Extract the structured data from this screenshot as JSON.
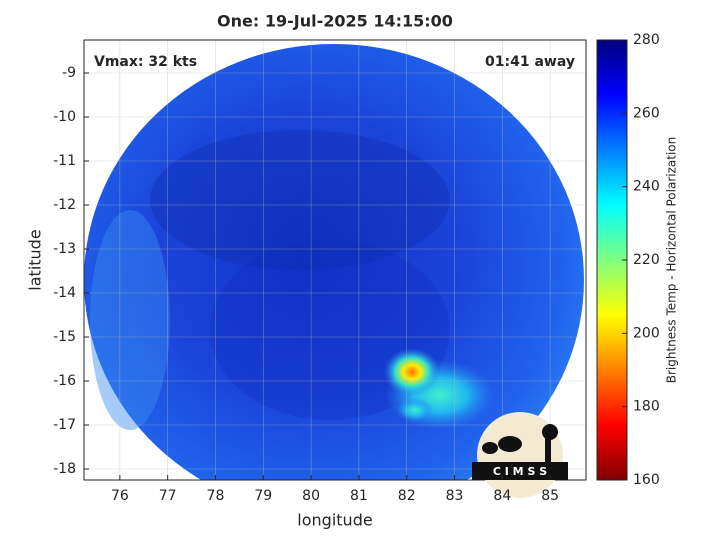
{
  "chart_data": {
    "type": "map",
    "title": "One: 19-Jul-2025 14:15:00",
    "annotations": [
      "Vmax: 32 kts",
      "01:41 away"
    ],
    "xlabel": "longitude",
    "ylabel": "latitude",
    "xlim": [
      75.25,
      85.75
    ],
    "xticks": [
      76,
      77,
      78,
      79,
      80,
      81,
      82,
      83,
      84,
      85
    ],
    "ylim": [
      -18.25,
      -8.25
    ],
    "yticks": [
      -9,
      -10,
      -11,
      -12,
      -13,
      -14,
      -15,
      -16,
      -17,
      -18
    ],
    "grid": true,
    "colorbar": {
      "label": "Brightness Temp - Horizontal Polarization",
      "lim": [
        160,
        280
      ],
      "ticks": [
        160,
        180,
        200,
        220,
        240,
        260,
        280
      ]
    },
    "logo": "C I M S S"
  }
}
